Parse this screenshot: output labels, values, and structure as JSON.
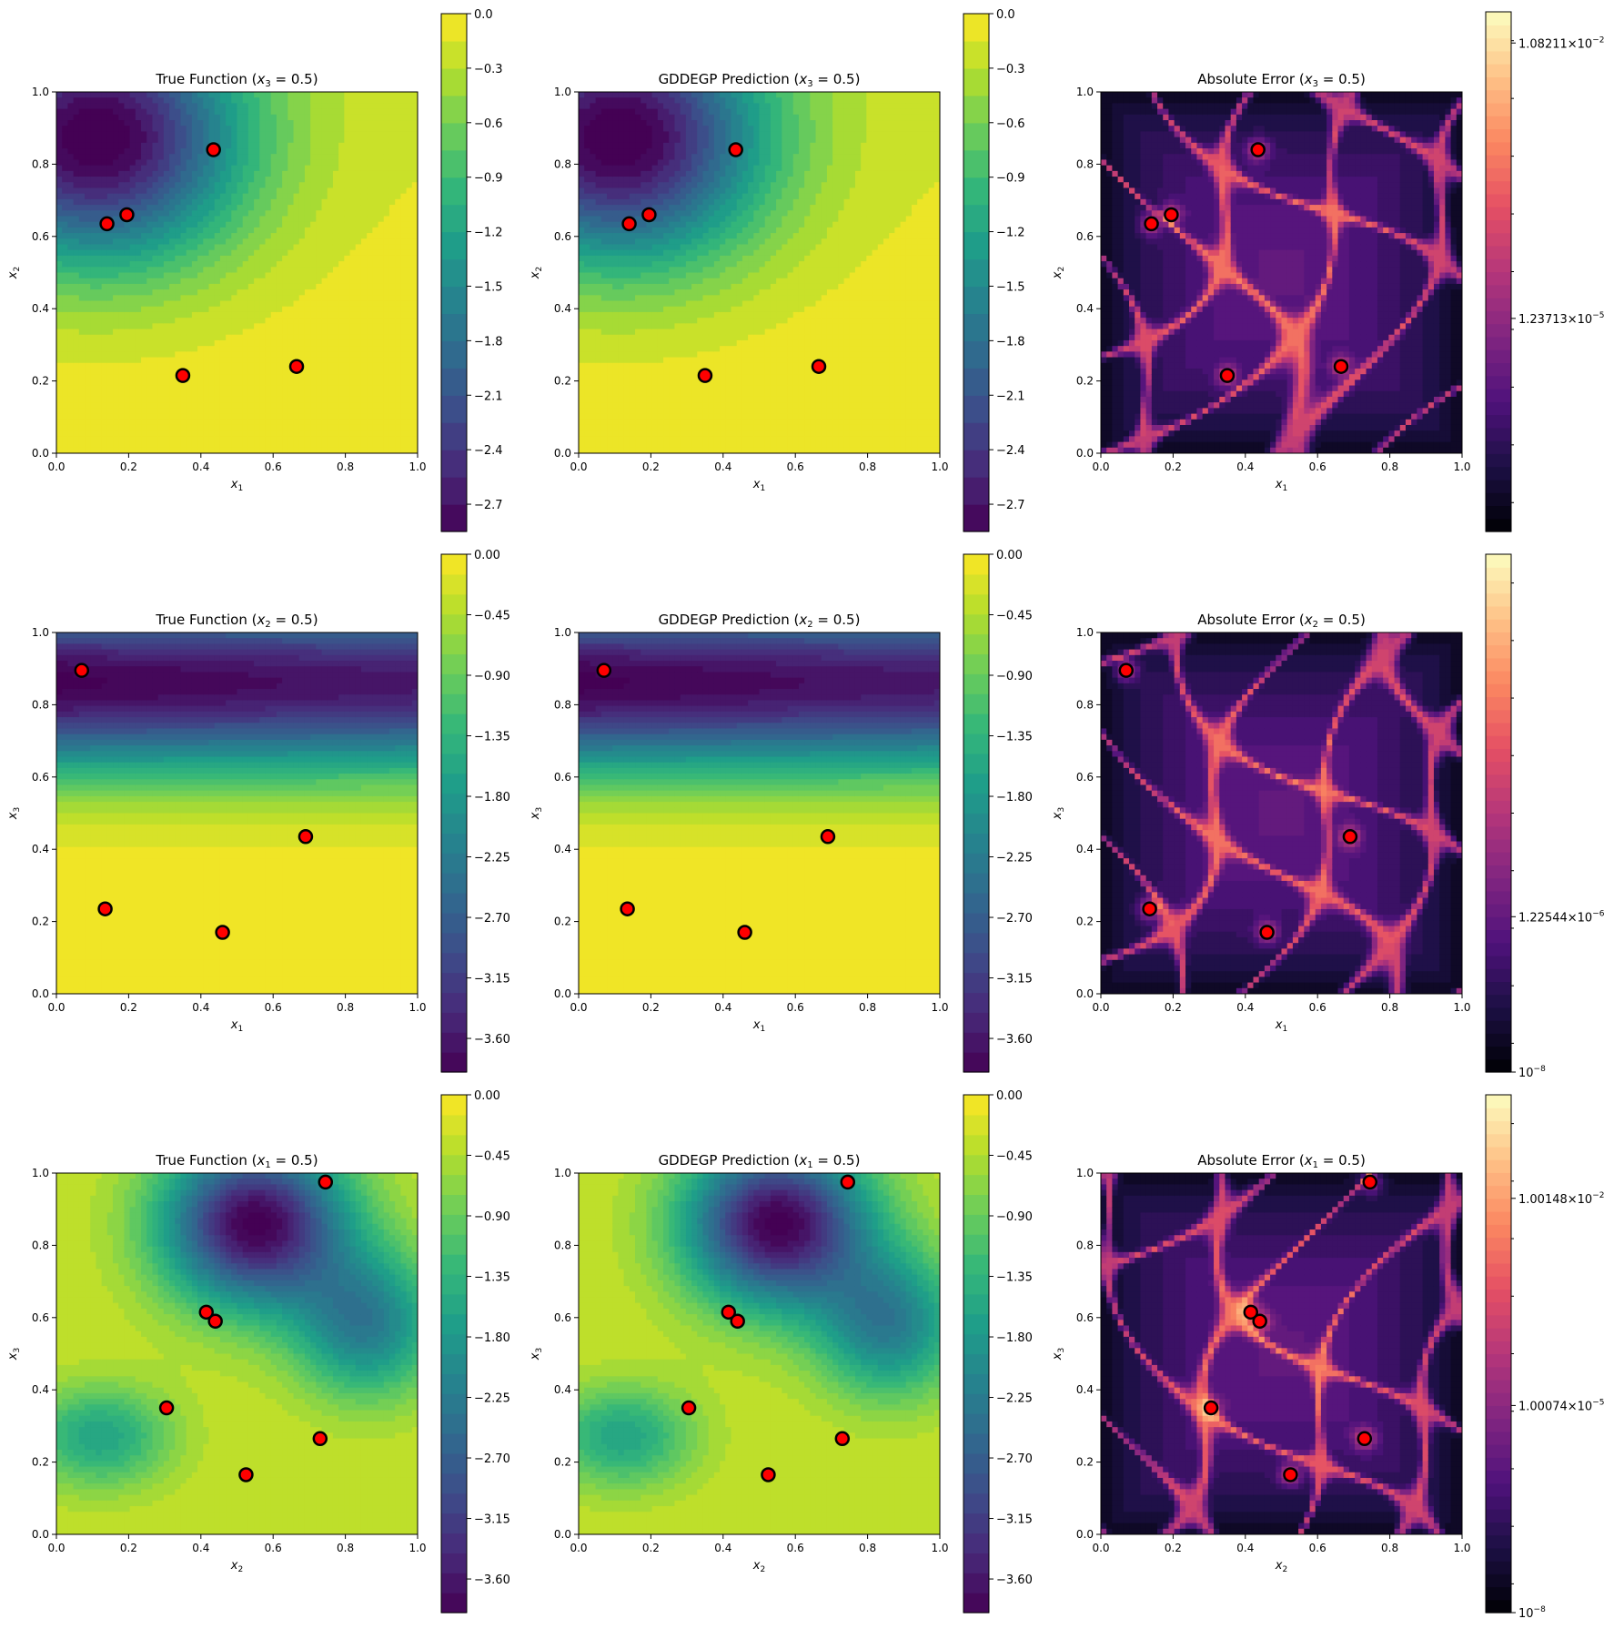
{
  "chart_data": [
    {
      "type": "contour",
      "title": "True Function",
      "slice": {
        "var": "x",
        "sub": "3",
        "value": "0.5"
      },
      "xlabel": {
        "var": "x",
        "sub": "1"
      },
      "ylabel": {
        "var": "x",
        "sub": "2"
      },
      "xlim": [
        0,
        1
      ],
      "ylim": [
        0,
        1
      ],
      "xticks": [
        "0.0",
        "0.2",
        "0.4",
        "0.6",
        "0.8",
        "1.0"
      ],
      "yticks": [
        "0.0",
        "0.2",
        "0.4",
        "0.6",
        "0.8",
        "1.0"
      ],
      "colormap": "viridis",
      "colorbar": {
        "range": [
          -2.85,
          0.0
        ],
        "ticks": [
          "0.0",
          "-0.3",
          "-0.6",
          "-0.9",
          "-1.2",
          "-1.5",
          "-1.8",
          "-2.1",
          "-2.4",
          "-2.7"
        ],
        "tick_values": [
          0,
          -0.3,
          -0.6,
          -0.9,
          -1.2,
          -1.5,
          -1.8,
          -2.1,
          -2.4,
          -2.7
        ]
      },
      "field": {
        "minima": [
          {
            "x": 0.11,
            "y": 0.87,
            "depth": 2.85,
            "sx": 0.28,
            "sy": 0.24
          }
        ],
        "base": -0.05,
        "slope": 0.55
      },
      "points": [
        [
          0.435,
          0.84
        ],
        [
          0.14,
          0.635
        ],
        [
          0.195,
          0.66
        ],
        [
          0.35,
          0.215
        ],
        [
          0.665,
          0.24
        ]
      ]
    },
    {
      "type": "contour",
      "title": "GDDEGP Prediction",
      "slice": {
        "var": "x",
        "sub": "3",
        "value": "0.5"
      },
      "xlabel": {
        "var": "x",
        "sub": "1"
      },
      "ylabel": {
        "var": "x",
        "sub": "2"
      },
      "xlim": [
        0,
        1
      ],
      "ylim": [
        0,
        1
      ],
      "xticks": [
        "0.0",
        "0.2",
        "0.4",
        "0.6",
        "0.8",
        "1.0"
      ],
      "yticks": [
        "0.0",
        "0.2",
        "0.4",
        "0.6",
        "0.8",
        "1.0"
      ],
      "colormap": "viridis",
      "colorbar": {
        "range": [
          -2.85,
          0.0
        ],
        "ticks": [
          "0.0",
          "-0.3",
          "-0.6",
          "-0.9",
          "-1.2",
          "-1.5",
          "-1.8",
          "-2.1",
          "-2.4",
          "-2.7"
        ],
        "tick_values": [
          0,
          -0.3,
          -0.6,
          -0.9,
          -1.2,
          -1.5,
          -1.8,
          -2.1,
          -2.4,
          -2.7
        ]
      },
      "field": {
        "minima": [
          {
            "x": 0.11,
            "y": 0.87,
            "depth": 2.85,
            "sx": 0.28,
            "sy": 0.24
          }
        ],
        "base": -0.05,
        "slope": 0.55
      },
      "points": [
        [
          0.435,
          0.84
        ],
        [
          0.14,
          0.635
        ],
        [
          0.195,
          0.66
        ],
        [
          0.35,
          0.215
        ],
        [
          0.665,
          0.24
        ]
      ]
    },
    {
      "type": "error-contour",
      "title": "Absolute Error",
      "slice": {
        "var": "x",
        "sub": "3",
        "value": "0.5"
      },
      "xlabel": {
        "var": "x",
        "sub": "1"
      },
      "ylabel": {
        "var": "x",
        "sub": "2"
      },
      "xlim": [
        0,
        1
      ],
      "ylim": [
        0,
        1
      ],
      "xticks": [
        "0.0",
        "0.2",
        "0.4",
        "0.6",
        "0.8",
        "1.0"
      ],
      "yticks": [
        "0.0",
        "0.2",
        "0.4",
        "0.6",
        "0.8",
        "1.0"
      ],
      "colormap": "magma_r",
      "colorbar": {
        "scale": "log",
        "ticks": [
          {
            "m": "1.08211",
            "e": "−2",
            "pos": 0.94
          },
          {
            "m": "1.23713",
            "e": "−5",
            "pos": 0.41
          }
        ],
        "minor_count": 9
      },
      "points": [
        [
          0.435,
          0.84
        ],
        [
          0.14,
          0.635
        ],
        [
          0.195,
          0.66
        ],
        [
          0.35,
          0.215
        ],
        [
          0.665,
          0.24
        ]
      ]
    },
    {
      "type": "contour",
      "title": "True Function",
      "slice": {
        "var": "x",
        "sub": "2",
        "value": "0.5"
      },
      "xlabel": {
        "var": "x",
        "sub": "1"
      },
      "ylabel": {
        "var": "x",
        "sub": "3"
      },
      "xlim": [
        0,
        1
      ],
      "ylim": [
        0,
        1
      ],
      "xticks": [
        "0.0",
        "0.2",
        "0.4",
        "0.6",
        "0.8",
        "1.0"
      ],
      "yticks": [
        "0.0",
        "0.2",
        "0.4",
        "0.6",
        "0.8",
        "1.0"
      ],
      "colormap": "viridis",
      "colorbar": {
        "range": [
          -3.85,
          0.0
        ],
        "ticks": [
          "0.00",
          "-0.45",
          "-0.90",
          "-1.35",
          "-1.80",
          "-2.25",
          "-2.70",
          "-3.15",
          "-3.60"
        ],
        "tick_values": [
          0,
          -0.45,
          -0.9,
          -1.35,
          -1.8,
          -2.25,
          -2.7,
          -3.15,
          -3.6
        ]
      },
      "field": {
        "band": {
          "y": 0.86,
          "depth": 3.8,
          "sy": 0.17
        },
        "base": -0.02,
        "slope": 0.4
      },
      "points": [
        [
          0.07,
          0.895
        ],
        [
          0.69,
          0.435
        ],
        [
          0.135,
          0.235
        ],
        [
          0.46,
          0.17
        ]
      ]
    },
    {
      "type": "contour",
      "title": "GDDEGP Prediction",
      "slice": {
        "var": "x",
        "sub": "2",
        "value": "0.5"
      },
      "xlabel": {
        "var": "x",
        "sub": "1"
      },
      "ylabel": {
        "var": "x",
        "sub": "3"
      },
      "xlim": [
        0,
        1
      ],
      "ylim": [
        0,
        1
      ],
      "xticks": [
        "0.0",
        "0.2",
        "0.4",
        "0.6",
        "0.8",
        "1.0"
      ],
      "yticks": [
        "0.0",
        "0.2",
        "0.4",
        "0.6",
        "0.8",
        "1.0"
      ],
      "colormap": "viridis",
      "colorbar": {
        "range": [
          -3.85,
          0.0
        ],
        "ticks": [
          "0.00",
          "-0.45",
          "-0.90",
          "-1.35",
          "-1.80",
          "-2.25",
          "-2.70",
          "-3.15",
          "-3.60"
        ],
        "tick_values": [
          0,
          -0.45,
          -0.9,
          -1.35,
          -1.8,
          -2.25,
          -2.7,
          -3.15,
          -3.6
        ]
      },
      "field": {
        "band": {
          "y": 0.86,
          "depth": 3.8,
          "sy": 0.17
        },
        "base": -0.02,
        "slope": 0.4
      },
      "points": [
        [
          0.07,
          0.895
        ],
        [
          0.69,
          0.435
        ],
        [
          0.135,
          0.235
        ],
        [
          0.46,
          0.17
        ]
      ]
    },
    {
      "type": "error-contour",
      "title": "Absolute Error",
      "slice": {
        "var": "x",
        "sub": "2",
        "value": "0.5"
      },
      "xlabel": {
        "var": "x",
        "sub": "1"
      },
      "ylabel": {
        "var": "x",
        "sub": "3"
      },
      "xlim": [
        0,
        1
      ],
      "ylim": [
        0,
        1
      ],
      "xticks": [
        "0.0",
        "0.2",
        "0.4",
        "0.6",
        "0.8",
        "1.0"
      ],
      "yticks": [
        "0.0",
        "0.2",
        "0.4",
        "0.6",
        "0.8",
        "1.0"
      ],
      "colormap": "magma_r",
      "colorbar": {
        "scale": "log",
        "ticks": [
          {
            "m": "1.22544",
            "e": "−6",
            "pos": 0.3
          },
          {
            "m": "",
            "e": "−8",
            "pos": 0.0
          }
        ],
        "minor_count": 9
      },
      "points": [
        [
          0.07,
          0.895
        ],
        [
          0.69,
          0.435
        ],
        [
          0.135,
          0.235
        ],
        [
          0.46,
          0.17
        ]
      ]
    },
    {
      "type": "contour",
      "title": "True Function",
      "slice": {
        "var": "x",
        "sub": "1",
        "value": "0.5"
      },
      "xlabel": {
        "var": "x",
        "sub": "2"
      },
      "ylabel": {
        "var": "x",
        "sub": "3"
      },
      "xlim": [
        0,
        1
      ],
      "ylim": [
        0,
        1
      ],
      "xticks": [
        "0.0",
        "0.2",
        "0.4",
        "0.6",
        "0.8",
        "1.0"
      ],
      "yticks": [
        "0.0",
        "0.2",
        "0.4",
        "0.6",
        "0.8",
        "1.0"
      ],
      "colormap": "viridis",
      "colorbar": {
        "range": [
          -3.85,
          0.0
        ],
        "ticks": [
          "0.00",
          "-0.45",
          "-0.90",
          "-1.35",
          "-1.80",
          "-2.25",
          "-2.70",
          "-3.15",
          "-3.60"
        ],
        "tick_values": [
          0,
          -0.45,
          -0.9,
          -1.35,
          -1.8,
          -2.25,
          -2.7,
          -3.15,
          -3.6
        ]
      },
      "field": {
        "minima": [
          {
            "x": 0.55,
            "y": 0.86,
            "depth": 3.6,
            "sx": 0.18,
            "sy": 0.16
          },
          {
            "x": 0.86,
            "y": 0.58,
            "depth": 1.9,
            "sx": 0.14,
            "sy": 0.14
          },
          {
            "x": 0.12,
            "y": 0.27,
            "depth": 1.3,
            "sx": 0.14,
            "sy": 0.1
          }
        ],
        "base": -0.3,
        "slope": 0.0
      },
      "points": [
        [
          0.745,
          0.975
        ],
        [
          0.415,
          0.615
        ],
        [
          0.44,
          0.59
        ],
        [
          0.305,
          0.35
        ],
        [
          0.73,
          0.265
        ],
        [
          0.525,
          0.165
        ]
      ]
    },
    {
      "type": "contour",
      "title": "GDDEGP Prediction",
      "slice": {
        "var": "x",
        "sub": "1",
        "value": "0.5"
      },
      "xlabel": {
        "var": "x",
        "sub": "2"
      },
      "ylabel": {
        "var": "x",
        "sub": "3"
      },
      "xlim": [
        0,
        1
      ],
      "ylim": [
        0,
        1
      ],
      "xticks": [
        "0.0",
        "0.2",
        "0.4",
        "0.6",
        "0.8",
        "1.0"
      ],
      "yticks": [
        "0.0",
        "0.2",
        "0.4",
        "0.6",
        "0.8",
        "1.0"
      ],
      "colormap": "viridis",
      "colorbar": {
        "range": [
          -3.85,
          0.0
        ],
        "ticks": [
          "0.00",
          "-0.45",
          "-0.90",
          "-1.35",
          "-1.80",
          "-2.25",
          "-2.70",
          "-3.15",
          "-3.60"
        ],
        "tick_values": [
          0,
          -0.45,
          -0.9,
          -1.35,
          -1.8,
          -2.25,
          -2.7,
          -3.15,
          -3.6
        ]
      },
      "field": {
        "minima": [
          {
            "x": 0.55,
            "y": 0.86,
            "depth": 3.6,
            "sx": 0.18,
            "sy": 0.16
          },
          {
            "x": 0.86,
            "y": 0.58,
            "depth": 1.9,
            "sx": 0.14,
            "sy": 0.14
          },
          {
            "x": 0.12,
            "y": 0.27,
            "depth": 1.3,
            "sx": 0.14,
            "sy": 0.1
          }
        ],
        "base": -0.3,
        "slope": 0.0
      },
      "points": [
        [
          0.745,
          0.975
        ],
        [
          0.415,
          0.615
        ],
        [
          0.44,
          0.59
        ],
        [
          0.305,
          0.35
        ],
        [
          0.73,
          0.265
        ],
        [
          0.525,
          0.165
        ]
      ]
    },
    {
      "type": "error-contour",
      "title": "Absolute Error",
      "slice": {
        "var": "x",
        "sub": "1",
        "value": "0.5"
      },
      "xlabel": {
        "var": "x",
        "sub": "2"
      },
      "ylabel": {
        "var": "x",
        "sub": "3"
      },
      "xlim": [
        0,
        1
      ],
      "ylim": [
        0,
        1
      ],
      "xticks": [
        "0.0",
        "0.2",
        "0.4",
        "0.6",
        "0.8",
        "1.0"
      ],
      "yticks": [
        "0.0",
        "0.2",
        "0.4",
        "0.6",
        "0.8",
        "1.0"
      ],
      "colormap": "magma_r",
      "colorbar": {
        "scale": "log",
        "ticks": [
          {
            "m": "1.00148",
            "e": "−2",
            "pos": 0.8
          },
          {
            "m": "1.00074",
            "e": "−5",
            "pos": 0.4
          },
          {
            "m": "",
            "e": "−8",
            "pos": 0.0
          }
        ],
        "minor_count": 9
      },
      "points": [
        [
          0.745,
          0.975
        ],
        [
          0.415,
          0.615
        ],
        [
          0.44,
          0.59
        ],
        [
          0.305,
          0.35
        ],
        [
          0.73,
          0.265
        ],
        [
          0.525,
          0.165
        ]
      ]
    }
  ]
}
